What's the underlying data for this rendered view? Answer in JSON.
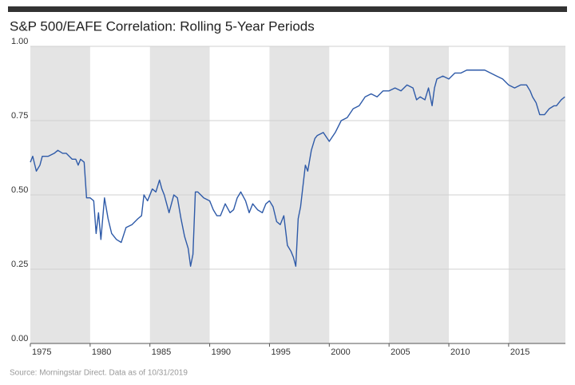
{
  "chart_data": {
    "type": "line",
    "title": "S&P 500/EAFE Correlation: Rolling 5-Year Periods",
    "source": "Source: Morningstar Direct. Data as of 10/31/2019",
    "xlim": [
      1975,
      2019.75
    ],
    "xticks": [
      1975,
      1980,
      1985,
      1990,
      1995,
      2000,
      2005,
      2010,
      2015
    ],
    "ylim": [
      0,
      1
    ],
    "yticks": [
      {
        "value": 0,
        "label": "0.00"
      },
      0.25,
      {
        "value": 0.5,
        "label": "0.50"
      },
      {
        "value": 0.75,
        "label": "0.75"
      },
      {
        "value": 1,
        "label": "1.00"
      }
    ],
    "grid": true,
    "band_shading": true,
    "band_color": "#e4e4e4",
    "series": [
      {
        "color": "#2e5aa8",
        "x": [
          1975.0,
          1975.2,
          1975.5,
          1975.8,
          1976.0,
          1976.5,
          1977.0,
          1977.3,
          1977.7,
          1978.0,
          1978.5,
          1978.8,
          1979.0,
          1979.2,
          1979.5,
          1979.7,
          1980.0,
          1980.3,
          1980.5,
          1980.7,
          1980.9,
          1981.2,
          1981.5,
          1981.8,
          1982.2,
          1982.6,
          1983.0,
          1983.5,
          1984.0,
          1984.3,
          1984.5,
          1984.8,
          1985.2,
          1985.5,
          1985.8,
          1986.0,
          1986.2,
          1986.6,
          1987.0,
          1987.3,
          1987.6,
          1987.9,
          1988.2,
          1988.4,
          1988.6,
          1988.8,
          1989.0,
          1989.5,
          1990.0,
          1990.3,
          1990.6,
          1990.9,
          1991.3,
          1991.7,
          1992.0,
          1992.3,
          1992.6,
          1993.0,
          1993.3,
          1993.6,
          1994.0,
          1994.4,
          1994.7,
          1995.0,
          1995.3,
          1995.6,
          1995.9,
          1996.2,
          1996.5,
          1996.8,
          1997.0,
          1997.2,
          1997.4,
          1997.6,
          1997.8,
          1998.0,
          1998.2,
          1998.5,
          1998.8,
          1999.0,
          1999.5,
          2000.0,
          2000.5,
          2001.0,
          2001.5,
          2002.0,
          2002.5,
          2003.0,
          2003.5,
          2004.0,
          2004.5,
          2005.0,
          2005.5,
          2006.0,
          2006.5,
          2007.0,
          2007.3,
          2007.6,
          2008.0,
          2008.3,
          2008.6,
          2008.8,
          2009.0,
          2009.5,
          2010.0,
          2010.5,
          2011.0,
          2011.5,
          2012.0,
          2012.5,
          2013.0,
          2013.5,
          2014.0,
          2014.5,
          2015.0,
          2015.5,
          2016.0,
          2016.5,
          2016.8,
          2017.0,
          2017.3,
          2017.6,
          2018.0,
          2018.4,
          2018.8,
          2019.0,
          2019.4,
          2019.7
        ],
        "values": [
          0.61,
          0.63,
          0.58,
          0.6,
          0.63,
          0.63,
          0.64,
          0.65,
          0.64,
          0.64,
          0.62,
          0.62,
          0.6,
          0.62,
          0.61,
          0.49,
          0.49,
          0.48,
          0.37,
          0.44,
          0.35,
          0.49,
          0.42,
          0.37,
          0.35,
          0.34,
          0.39,
          0.4,
          0.42,
          0.43,
          0.5,
          0.48,
          0.52,
          0.51,
          0.55,
          0.52,
          0.5,
          0.44,
          0.5,
          0.49,
          0.42,
          0.36,
          0.32,
          0.26,
          0.3,
          0.51,
          0.51,
          0.49,
          0.48,
          0.45,
          0.43,
          0.43,
          0.47,
          0.44,
          0.45,
          0.49,
          0.51,
          0.48,
          0.44,
          0.47,
          0.45,
          0.44,
          0.47,
          0.48,
          0.46,
          0.41,
          0.4,
          0.43,
          0.33,
          0.31,
          0.29,
          0.26,
          0.42,
          0.46,
          0.53,
          0.6,
          0.58,
          0.65,
          0.69,
          0.7,
          0.71,
          0.68,
          0.71,
          0.75,
          0.76,
          0.79,
          0.8,
          0.83,
          0.84,
          0.83,
          0.85,
          0.85,
          0.86,
          0.85,
          0.87,
          0.86,
          0.82,
          0.83,
          0.82,
          0.86,
          0.8,
          0.86,
          0.89,
          0.9,
          0.89,
          0.91,
          0.91,
          0.92,
          0.92,
          0.92,
          0.92,
          0.91,
          0.9,
          0.89,
          0.87,
          0.86,
          0.87,
          0.87,
          0.85,
          0.83,
          0.81,
          0.77,
          0.77,
          0.79,
          0.8,
          0.8,
          0.82,
          0.83
        ]
      }
    ]
  }
}
